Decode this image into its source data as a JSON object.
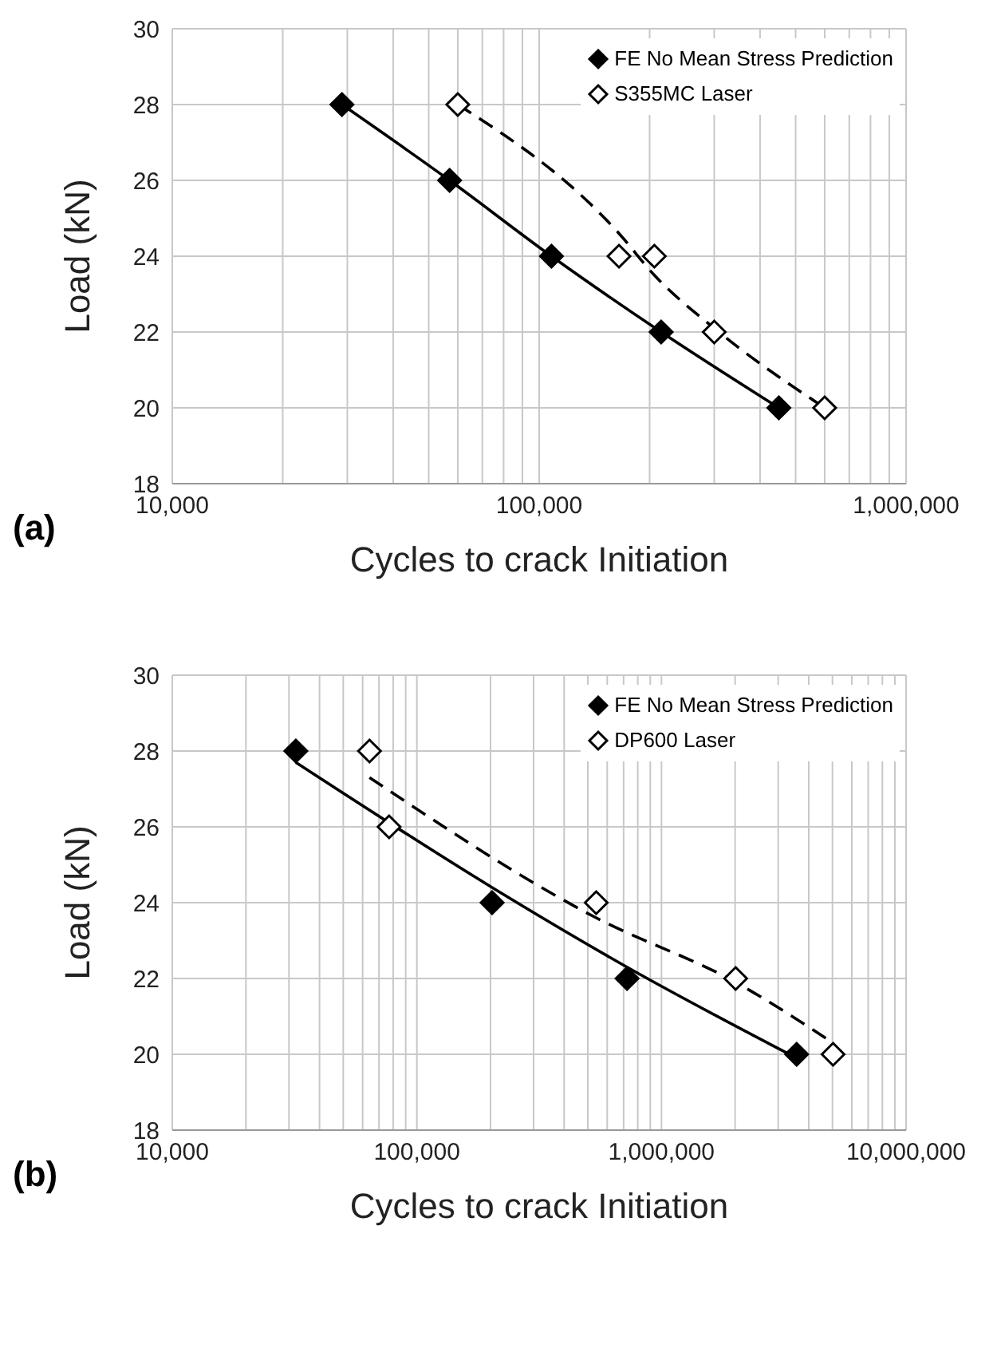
{
  "chart_data": [
    {
      "type": "scatter",
      "xlabel": "Cycles to crack Initiation",
      "ylabel": "Load (kN)",
      "annotations": [
        "(a)"
      ],
      "log": "x",
      "grid": true,
      "legend": "top right",
      "marker": "diamond",
      "xlim": [
        10000,
        1000000
      ],
      "ylim": [
        18,
        30
      ],
      "yticks": [
        18,
        20,
        22,
        24,
        26,
        28,
        30
      ],
      "xticks": [
        {
          "value": 10000,
          "label": "10,000"
        },
        {
          "value": 20000,
          "label": null
        },
        {
          "value": 30000,
          "label": null
        },
        {
          "value": 40000,
          "label": null
        },
        {
          "value": 50000,
          "label": null
        },
        {
          "value": 60000,
          "label": null
        },
        {
          "value": 70000,
          "label": null
        },
        {
          "value": 80000,
          "label": null
        },
        {
          "value": 90000,
          "label": null
        },
        {
          "value": 100000,
          "label": "100,000"
        },
        {
          "value": 200000,
          "label": null
        },
        {
          "value": 300000,
          "label": null
        },
        {
          "value": 400000,
          "label": null
        },
        {
          "value": 500000,
          "label": null
        },
        {
          "value": 600000,
          "label": null
        },
        {
          "value": 700000,
          "label": null
        },
        {
          "value": 800000,
          "label": null
        },
        {
          "value": 900000,
          "label": null
        },
        {
          "value": 1000000,
          "label": "1,000,000"
        }
      ],
      "series": [
        {
          "name": "FE No Mean Stress Prediction",
          "color": "#000000",
          "x": [
            29000,
            57000,
            108000,
            215000,
            450000
          ],
          "values": [
            28,
            26,
            24,
            22,
            20
          ]
        },
        {
          "name": "S355MC Laser",
          "color": "#ffffff",
          "x": [
            60000,
            165000,
            206000,
            300000,
            600000
          ],
          "values": [
            28,
            24,
            24,
            22,
            20
          ]
        },
        {
          "type": "line",
          "color": "#000000",
          "line_style": "solid",
          "marker": "none",
          "x": [
            29000,
            57000,
            108000,
            215000,
            450000
          ],
          "values": [
            28,
            26,
            24,
            22,
            20
          ]
        },
        {
          "type": "line",
          "color": "#000000",
          "line_style": "dashed",
          "marker": "none",
          "x": [
            60000,
            165000,
            206000,
            300000,
            600000
          ],
          "values": [
            28,
            24.6,
            23.5,
            22.1,
            20
          ]
        }
      ]
    },
    {
      "type": "scatter",
      "xlabel": "Cycles to crack Initiation",
      "ylabel": "Load (kN)",
      "annotations": [
        "(b)"
      ],
      "log": "x",
      "grid": true,
      "legend": "top right",
      "marker": "diamond",
      "xlim": [
        10000,
        10000000
      ],
      "ylim": [
        18,
        30
      ],
      "yticks": [
        18,
        20,
        22,
        24,
        26,
        28,
        30
      ],
      "xticks": [
        {
          "value": 10000,
          "label": "10,000"
        },
        {
          "value": 20000,
          "label": null
        },
        {
          "value": 30000,
          "label": null
        },
        {
          "value": 40000,
          "label": null
        },
        {
          "value": 50000,
          "label": null
        },
        {
          "value": 60000,
          "label": null
        },
        {
          "value": 70000,
          "label": null
        },
        {
          "value": 80000,
          "label": null
        },
        {
          "value": 90000,
          "label": null
        },
        {
          "value": 100000,
          "label": "100,000"
        },
        {
          "value": 200000,
          "label": null
        },
        {
          "value": 300000,
          "label": null
        },
        {
          "value": 400000,
          "label": null
        },
        {
          "value": 500000,
          "label": null
        },
        {
          "value": 600000,
          "label": null
        },
        {
          "value": 700000,
          "label": null
        },
        {
          "value": 800000,
          "label": null
        },
        {
          "value": 900000,
          "label": null
        },
        {
          "value": 1000000,
          "label": "1,000,000"
        },
        {
          "value": 2000000,
          "label": null
        },
        {
          "value": 3000000,
          "label": null
        },
        {
          "value": 4000000,
          "label": null
        },
        {
          "value": 5000000,
          "label": null
        },
        {
          "value": 6000000,
          "label": null
        },
        {
          "value": 7000000,
          "label": null
        },
        {
          "value": 8000000,
          "label": null
        },
        {
          "value": 9000000,
          "label": null
        },
        {
          "value": 10000000,
          "label": "10,000,000"
        }
      ],
      "series": [
        {
          "name": "FE No Mean Stress Prediction",
          "color": "#000000",
          "x": [
            32000,
            203000,
            723000,
            3570000
          ],
          "values": [
            28,
            24,
            22,
            20
          ]
        },
        {
          "name": "DP600 Laser",
          "color": "#ffffff",
          "x": [
            64000,
            77000,
            541000,
            2010000,
            5030000
          ],
          "values": [
            28,
            26,
            24,
            22,
            20
          ]
        },
        {
          "type": "line",
          "color": "#000000",
          "line_style": "solid",
          "marker": "none",
          "x": [
            32000,
            203000,
            723000,
            3570000
          ],
          "values": [
            27.7,
            24.4,
            22.3,
            19.9
          ]
        },
        {
          "type": "line",
          "color": "#000000",
          "line_style": "dashed",
          "marker": "none",
          "x": [
            64000,
            541000,
            2010000,
            5030000
          ],
          "values": [
            27.3,
            23.6,
            21.9,
            20.3
          ]
        }
      ]
    }
  ]
}
